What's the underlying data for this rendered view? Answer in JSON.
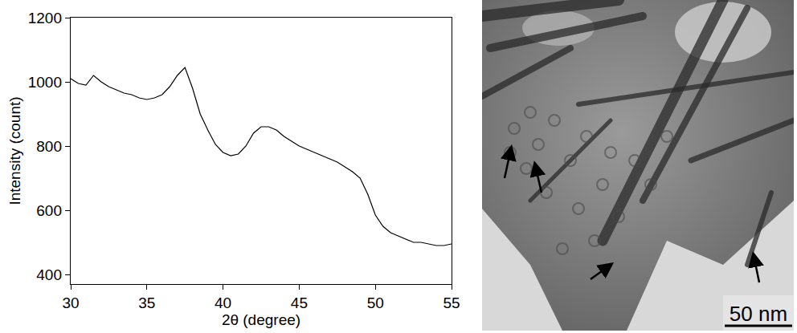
{
  "chart_data": {
    "type": "line",
    "x_label": "2θ (degree)",
    "y_label": "Intensity (count)",
    "color": "#000000",
    "x": [
      30,
      30.5,
      31,
      31.5,
      32,
      32.5,
      33,
      33.5,
      34,
      34.5,
      35,
      35.5,
      36,
      36.5,
      37,
      37.5,
      38,
      38.5,
      39,
      39.5,
      40,
      40.5,
      41,
      41.5,
      42,
      42.5,
      43,
      43.5,
      44,
      44.5,
      45,
      45.5,
      46,
      46.5,
      47,
      47.5,
      48,
      48.5,
      49,
      49.5,
      50,
      50.5,
      51,
      51.5,
      52,
      52.5,
      53,
      53.5,
      54,
      54.5,
      55
    ],
    "values": [
      1010,
      995,
      990,
      1020,
      1000,
      985,
      975,
      965,
      960,
      950,
      945,
      950,
      960,
      985,
      1020,
      1045,
      980,
      900,
      850,
      805,
      780,
      770,
      775,
      800,
      840,
      860,
      860,
      850,
      830,
      815,
      800,
      790,
      780,
      770,
      760,
      750,
      735,
      720,
      700,
      650,
      585,
      550,
      530,
      520,
      510,
      500,
      500,
      495,
      490,
      490,
      495
    ],
    "xlim": [
      30,
      55
    ],
    "xticks": [
      30,
      35,
      40,
      45,
      50,
      55
    ],
    "ylim": [
      370,
      1200
    ],
    "yticks": [
      400,
      600,
      800,
      1000,
      1200
    ],
    "grid": false
  },
  "micrograph": {
    "scale_bar_label": "50 nm"
  }
}
